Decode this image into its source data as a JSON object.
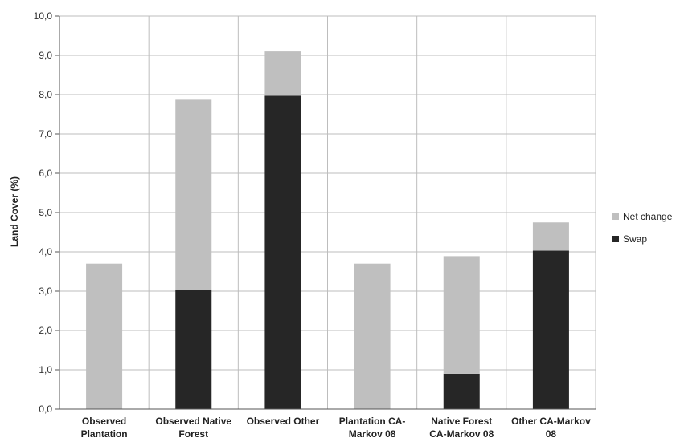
{
  "chart_data": {
    "type": "bar",
    "stacked": true,
    "categories": [
      [
        "Observed",
        "Plantation"
      ],
      [
        "Observed Native",
        "Forest"
      ],
      [
        "Observed Other"
      ],
      [
        "Plantation CA-",
        "Markov 08"
      ],
      [
        "Native Forest",
        "CA-Markov 08"
      ],
      [
        "Other CA-Markov",
        "08"
      ]
    ],
    "series": [
      {
        "name": "Swap",
        "color": "#262626",
        "values": [
          0.0,
          3.03,
          7.97,
          0.0,
          0.9,
          4.03
        ]
      },
      {
        "name": "Net change",
        "color": "#bfbfbf",
        "values": [
          3.7,
          4.84,
          1.13,
          3.7,
          2.99,
          0.72
        ]
      }
    ],
    "ylabel": "Land Cover (%)",
    "xlabel": "",
    "ylim": [
      0,
      10
    ],
    "yticks": [
      "0,0",
      "1,0",
      "2,0",
      "3,0",
      "4,0",
      "5,0",
      "6,0",
      "7,0",
      "8,0",
      "9,0",
      "10,0"
    ],
    "grid": "horizontal and vertical category separators",
    "legend": {
      "position": "right",
      "entries": [
        "Net change",
        "Swap"
      ]
    }
  }
}
